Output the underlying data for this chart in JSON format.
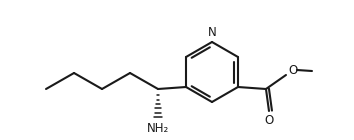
{
  "bg_color": "#ffffff",
  "bond_color": "#1a1a1a",
  "lw": 1.5,
  "lw_thin": 1.2,
  "figsize": [
    3.54,
    1.4
  ],
  "dpi": 100,
  "N_label": "N",
  "NH2_label": "NH₂",
  "O_label": "O"
}
